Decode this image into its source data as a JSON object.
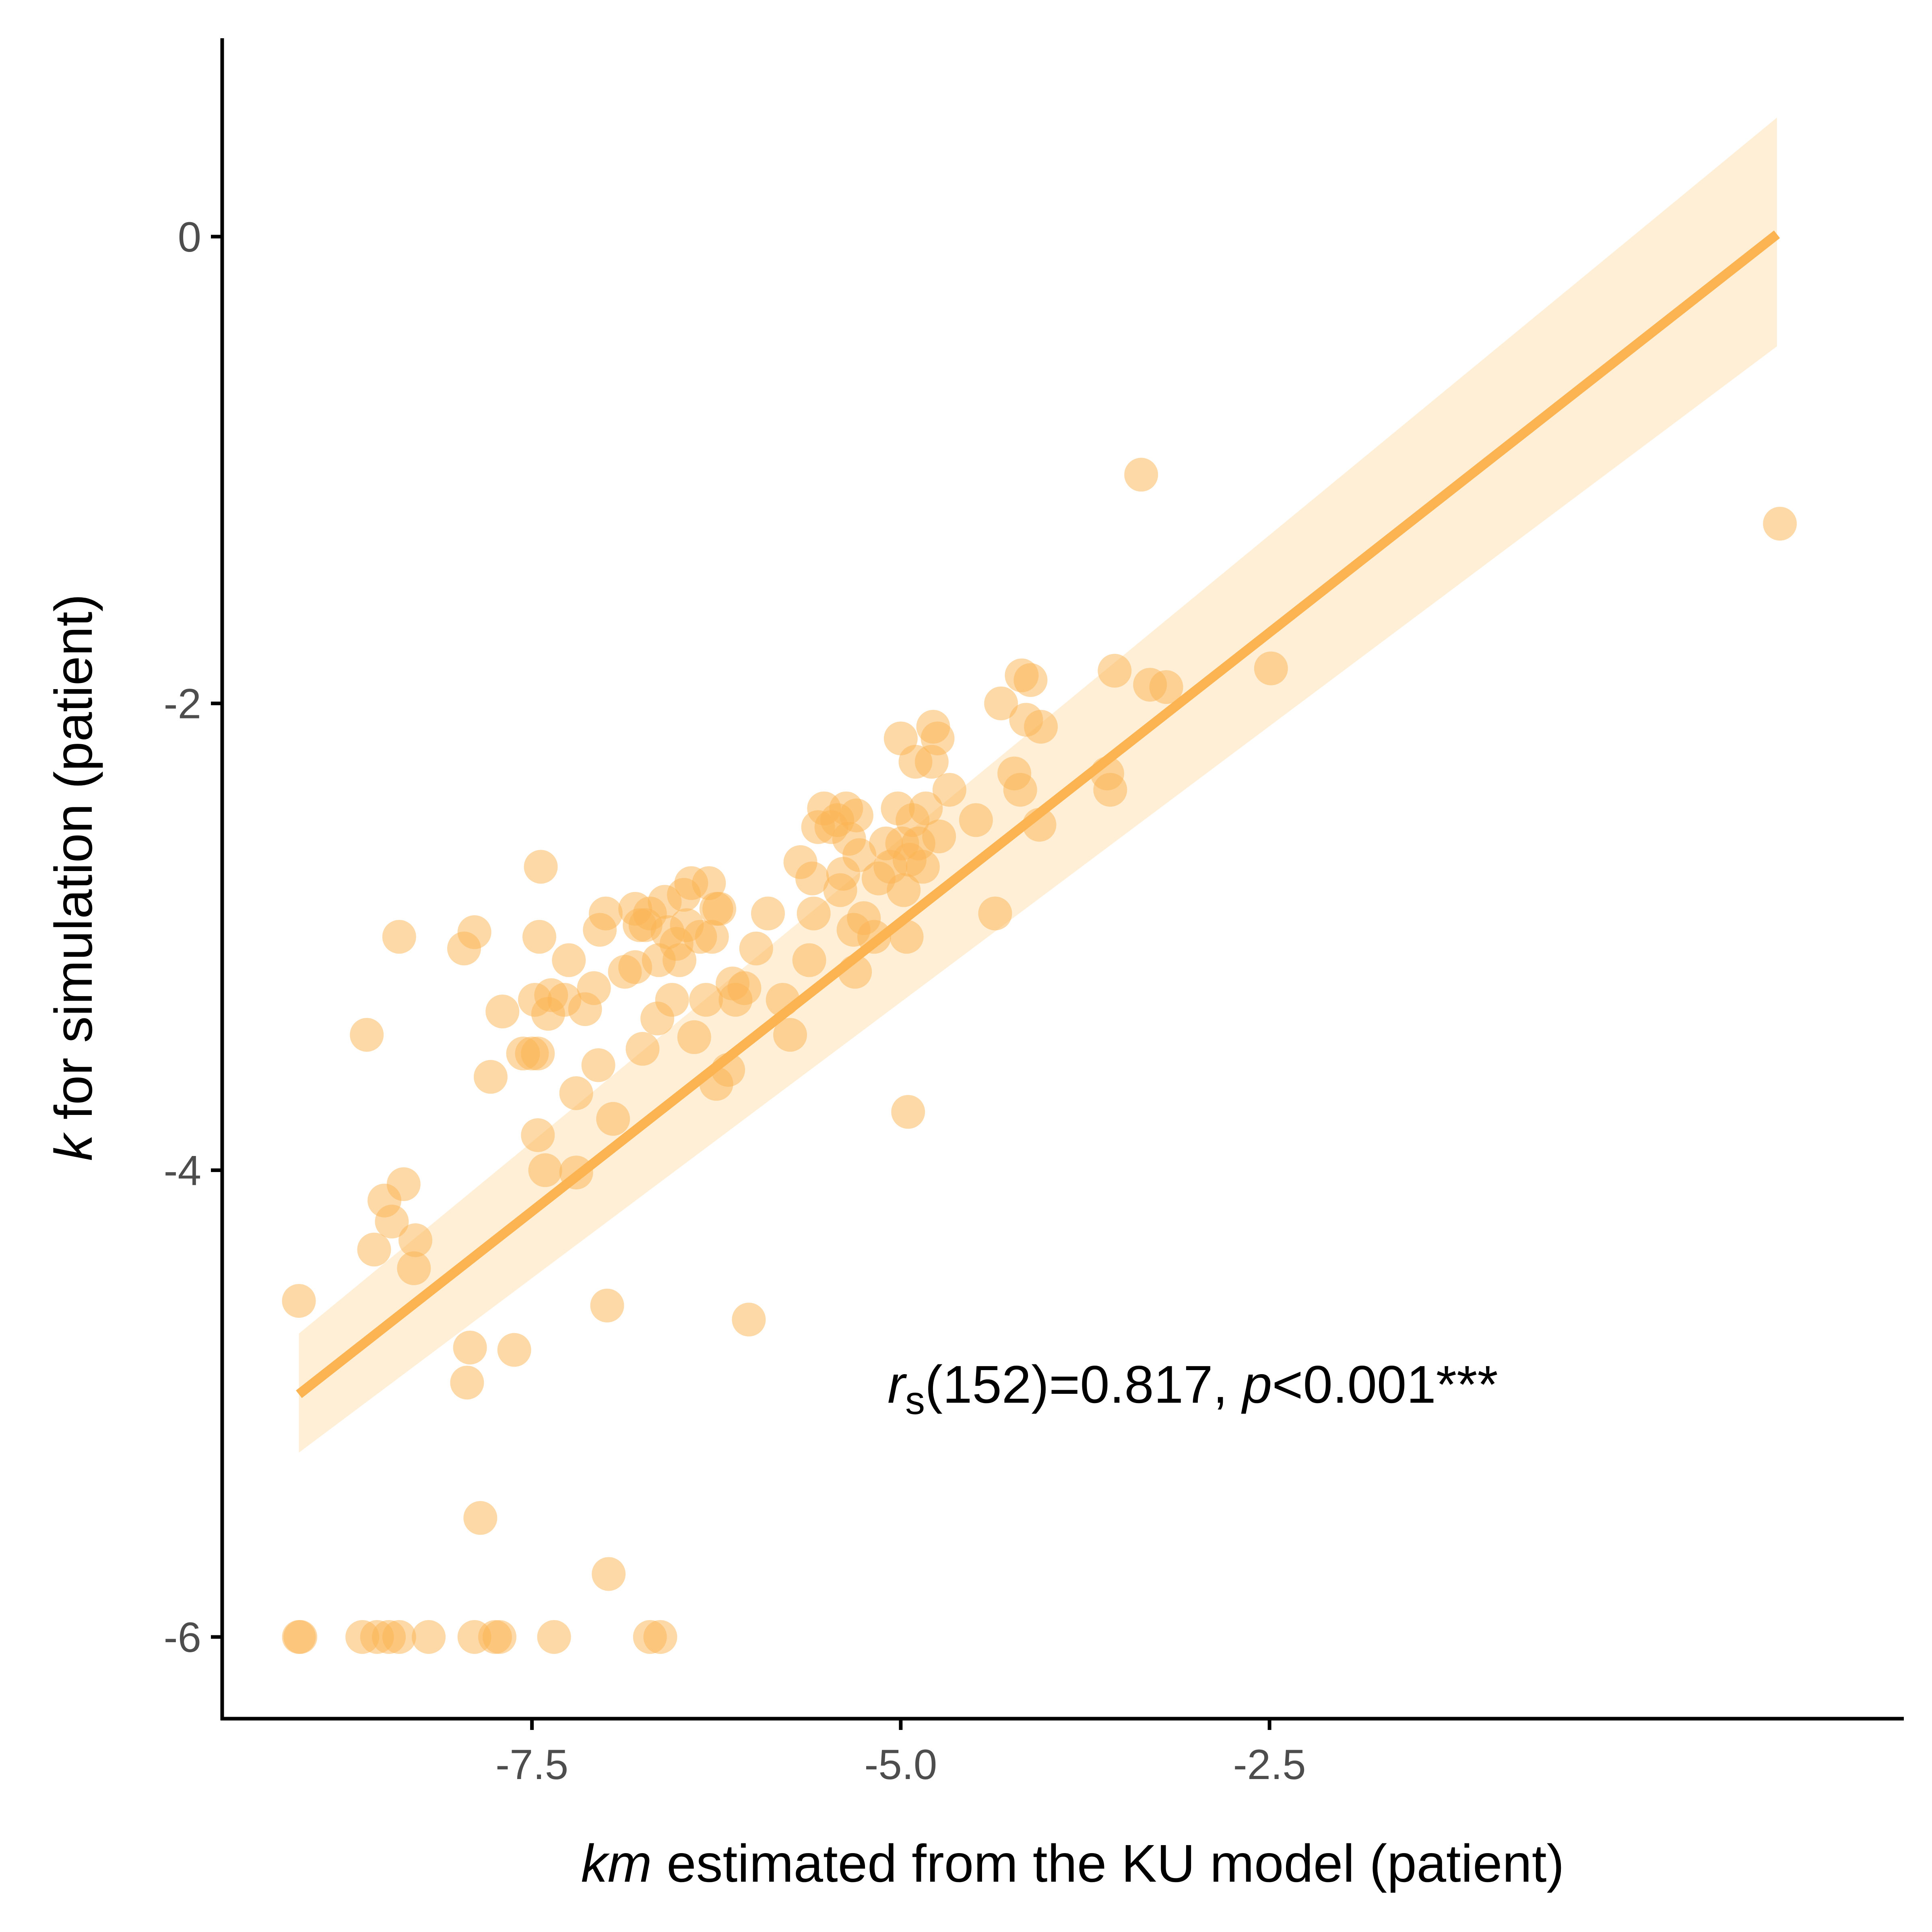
{
  "colors": {
    "point": "#fbb451",
    "line": "#fbb451",
    "ribbon": "#fde8c4",
    "axis": "#000000",
    "tick_label": "#4d4d4d"
  },
  "chart_data": {
    "type": "scatter",
    "xlabel_italic": "km",
    "xlabel_rest": " estimated from the KU model (patient)",
    "ylabel_italic": "k",
    "ylabel_rest": " for simulation (patient)",
    "xlim": [
      -9.6,
      1.8
    ],
    "ylim": [
      -6.35,
      0.85
    ],
    "x_ticks": [
      -7.5,
      -5.0,
      -2.5
    ],
    "x_tick_labels": [
      "-7.5",
      "-5.0",
      "-2.5"
    ],
    "y_ticks": [
      0,
      -2,
      -4,
      -6
    ],
    "y_tick_labels": [
      "0",
      "-2",
      "-4",
      "-6"
    ],
    "grid": false,
    "legend": "none",
    "annotation": {
      "r_italic": "r",
      "subscript": "s",
      "middle": "(152)=0.817, ",
      "p_italic": "p",
      "tail": "<0.001***"
    },
    "regression": {
      "x": [
        -9.08,
        0.94
      ],
      "y": [
        -4.96,
        0.01
      ],
      "ribbon_lower": [
        -5.21,
        -0.47
      ],
      "ribbon_upper": [
        -4.7,
        0.51
      ]
    },
    "points": [
      [
        -9.08,
        -6.0
      ],
      [
        -9.07,
        -6.0
      ],
      [
        -8.65,
        -6.0
      ],
      [
        -8.55,
        -6.0
      ],
      [
        -8.47,
        -6.0
      ],
      [
        -8.4,
        -6.0
      ],
      [
        -8.2,
        -6.0
      ],
      [
        -7.89,
        -6.0
      ],
      [
        -7.75,
        -6.0
      ],
      [
        -7.72,
        -6.0
      ],
      [
        -7.35,
        -6.0
      ],
      [
        -6.7,
        -6.0
      ],
      [
        -6.63,
        -6.0
      ],
      [
        -9.08,
        -4.56
      ],
      [
        -8.62,
        -3.42
      ],
      [
        -8.5,
        -4.13
      ],
      [
        -8.45,
        -4.22
      ],
      [
        -8.4,
        -3.0
      ],
      [
        -8.37,
        -4.06
      ],
      [
        -8.29,
        -4.3
      ],
      [
        -8.3,
        -4.42
      ],
      [
        -8.57,
        -4.34
      ],
      [
        -7.85,
        -5.49
      ],
      [
        -7.92,
        -4.76
      ],
      [
        -7.94,
        -4.91
      ],
      [
        -7.96,
        -3.05
      ],
      [
        -7.89,
        -2.98
      ],
      [
        -7.78,
        -3.6
      ],
      [
        -7.7,
        -3.32
      ],
      [
        -7.62,
        -4.77
      ],
      [
        -7.56,
        -3.5
      ],
      [
        -7.5,
        -3.5
      ],
      [
        -7.46,
        -3.5
      ],
      [
        -7.46,
        -3.85
      ],
      [
        -7.48,
        -3.27
      ],
      [
        -7.45,
        -3.0
      ],
      [
        -7.44,
        -2.7
      ],
      [
        -7.41,
        -4.0
      ],
      [
        -7.39,
        -3.33
      ],
      [
        -7.37,
        -3.25
      ],
      [
        -7.25,
        -3.1
      ],
      [
        -7.28,
        -3.27
      ],
      [
        -7.2,
        -3.67
      ],
      [
        -7.2,
        -4.01
      ],
      [
        -7.14,
        -3.31
      ],
      [
        -7.08,
        -3.22
      ],
      [
        -7.05,
        -3.55
      ],
      [
        -7.04,
        -2.97
      ],
      [
        -7.0,
        -2.9
      ],
      [
        -6.99,
        -4.58
      ],
      [
        -6.98,
        -5.73
      ],
      [
        -6.95,
        -3.78
      ],
      [
        -6.87,
        -3.15
      ],
      [
        -6.8,
        -3.13
      ],
      [
        -6.8,
        -2.88
      ],
      [
        -6.77,
        -2.95
      ],
      [
        -6.75,
        -3.48
      ],
      [
        -6.73,
        -2.95
      ],
      [
        -6.7,
        -2.9
      ],
      [
        -6.65,
        -3.35
      ],
      [
        -6.64,
        -3.1
      ],
      [
        -6.6,
        -2.85
      ],
      [
        -6.58,
        -2.98
      ],
      [
        -6.55,
        -3.27
      ],
      [
        -6.52,
        -3.03
      ],
      [
        -6.5,
        -3.1
      ],
      [
        -6.47,
        -2.82
      ],
      [
        -6.45,
        -2.95
      ],
      [
        -6.42,
        -2.77
      ],
      [
        -6.4,
        -3.43
      ],
      [
        -6.36,
        -3.0
      ],
      [
        -6.32,
        -3.27
      ],
      [
        -6.3,
        -2.77
      ],
      [
        -6.28,
        -3.0
      ],
      [
        -6.25,
        -2.88
      ],
      [
        -6.25,
        -3.63
      ],
      [
        -6.23,
        -2.88
      ],
      [
        -6.17,
        -3.57
      ],
      [
        -6.14,
        -3.2
      ],
      [
        -6.12,
        -3.27
      ],
      [
        -6.06,
        -3.22
      ],
      [
        -6.03,
        -4.64
      ],
      [
        -5.98,
        -3.05
      ],
      [
        -5.9,
        -2.9
      ],
      [
        -5.8,
        -3.27
      ],
      [
        -5.75,
        -3.42
      ],
      [
        -5.68,
        -2.68
      ],
      [
        -5.62,
        -3.1
      ],
      [
        -5.6,
        -2.75
      ],
      [
        -5.59,
        -2.9
      ],
      [
        -5.56,
        -2.53
      ],
      [
        -5.52,
        -2.45
      ],
      [
        -5.47,
        -2.53
      ],
      [
        -5.43,
        -2.5
      ],
      [
        -5.41,
        -2.8
      ],
      [
        -5.39,
        -2.73
      ],
      [
        -5.37,
        -2.45
      ],
      [
        -5.35,
        -2.58
      ],
      [
        -5.32,
        -2.97
      ],
      [
        -5.31,
        -3.15
      ],
      [
        -5.3,
        -2.48
      ],
      [
        -5.28,
        -2.65
      ],
      [
        -5.25,
        -2.92
      ],
      [
        -5.18,
        -3.0
      ],
      [
        -5.15,
        -2.75
      ],
      [
        -5.1,
        -2.6
      ],
      [
        -5.07,
        -2.7
      ],
      [
        -5.02,
        -2.45
      ],
      [
        -5.0,
        -2.15
      ],
      [
        -4.99,
        -2.6
      ],
      [
        -4.98,
        -2.8
      ],
      [
        -4.96,
        -3.0
      ],
      [
        -4.95,
        -3.75
      ],
      [
        -4.94,
        -2.67
      ],
      [
        -4.92,
        -2.5
      ],
      [
        -4.9,
        -2.25
      ],
      [
        -4.88,
        -2.6
      ],
      [
        -4.85,
        -2.7
      ],
      [
        -4.83,
        -2.45
      ],
      [
        -4.79,
        -2.25
      ],
      [
        -4.78,
        -2.1
      ],
      [
        -4.75,
        -2.15
      ],
      [
        -4.74,
        -2.57
      ],
      [
        -4.67,
        -2.37
      ],
      [
        -4.49,
        -2.5
      ],
      [
        -4.36,
        -2.9
      ],
      [
        -4.32,
        -2.0
      ],
      [
        -4.23,
        -2.3
      ],
      [
        -4.19,
        -2.37
      ],
      [
        -4.18,
        -1.88
      ],
      [
        -4.15,
        -2.07
      ],
      [
        -4.12,
        -1.9
      ],
      [
        -4.06,
        -2.52
      ],
      [
        -4.05,
        -2.1
      ],
      [
        -3.6,
        -2.3
      ],
      [
        -3.58,
        -2.37
      ],
      [
        -3.55,
        -1.86
      ],
      [
        -3.31,
        -1.92
      ],
      [
        -3.2,
        -1.93
      ],
      [
        -3.37,
        -1.02
      ],
      [
        -2.49,
        -1.85
      ],
      [
        0.96,
        -1.23
      ]
    ]
  }
}
